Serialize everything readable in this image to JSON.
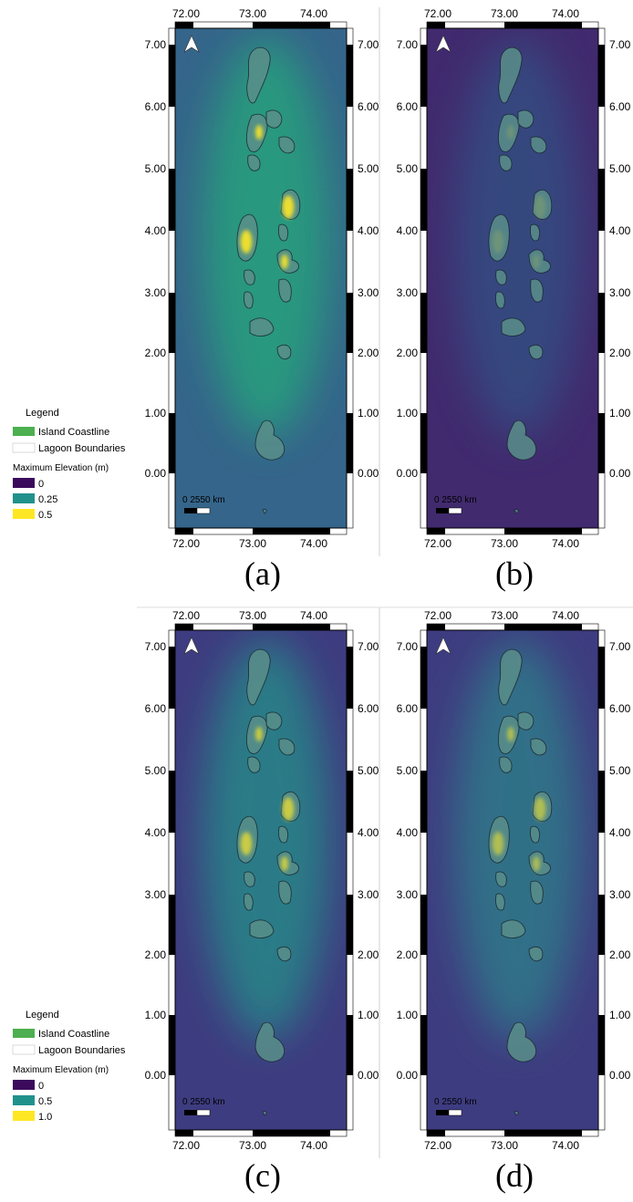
{
  "coord_labels": {
    "top_bottom": [
      "72.00",
      "73.00",
      "74.00"
    ],
    "left_right": [
      "7.00",
      "6.00",
      "5.00",
      "4.00",
      "3.00",
      "2.00",
      "1.00",
      "0.00"
    ]
  },
  "scale_bar_text": "0  2550 km",
  "north_arrow_icon": "north-arrow-icon",
  "legends": [
    {
      "title": "Legend",
      "entries": [
        {
          "label": "Island Coastline",
          "color": "#4caf50"
        },
        {
          "label": "Lagoon Boundaries",
          "color": "#ffffff"
        }
      ],
      "ramp_title": "Maximum Elevation (m)",
      "ramp": [
        {
          "label": "0",
          "color": "#3b0a5c"
        },
        {
          "label": "0.25",
          "color": "#21918c"
        },
        {
          "label": "0.5",
          "color": "#fde725"
        }
      ]
    },
    {
      "title": "Legend",
      "entries": [
        {
          "label": "Island Coastline",
          "color": "#4caf50"
        },
        {
          "label": "Lagoon Boundaries",
          "color": "#ffffff"
        }
      ],
      "ramp_title": "Maximum Elevation (m)",
      "ramp": [
        {
          "label": "0",
          "color": "#3b0a5c"
        },
        {
          "label": "0.5",
          "color": "#21918c"
        },
        {
          "label": "1.0",
          "color": "#fde725"
        }
      ]
    }
  ],
  "panels": [
    {
      "caption": "(a)",
      "background": "#35658a",
      "glow": "#27a17d",
      "glow_opacity": 0.85,
      "hot": 0.9
    },
    {
      "caption": "(b)",
      "background": "#412a6e",
      "glow": "#2f5c8a",
      "glow_opacity": 0.6,
      "hot": 0.15
    },
    {
      "caption": "(c)",
      "background": "#3e3c80",
      "glow": "#24978a",
      "glow_opacity": 0.7,
      "hot": 0.7
    },
    {
      "caption": "(d)",
      "background": "#3e3c80",
      "glow": "#2a8c8c",
      "glow_opacity": 0.65,
      "hot": 0.55
    }
  ]
}
